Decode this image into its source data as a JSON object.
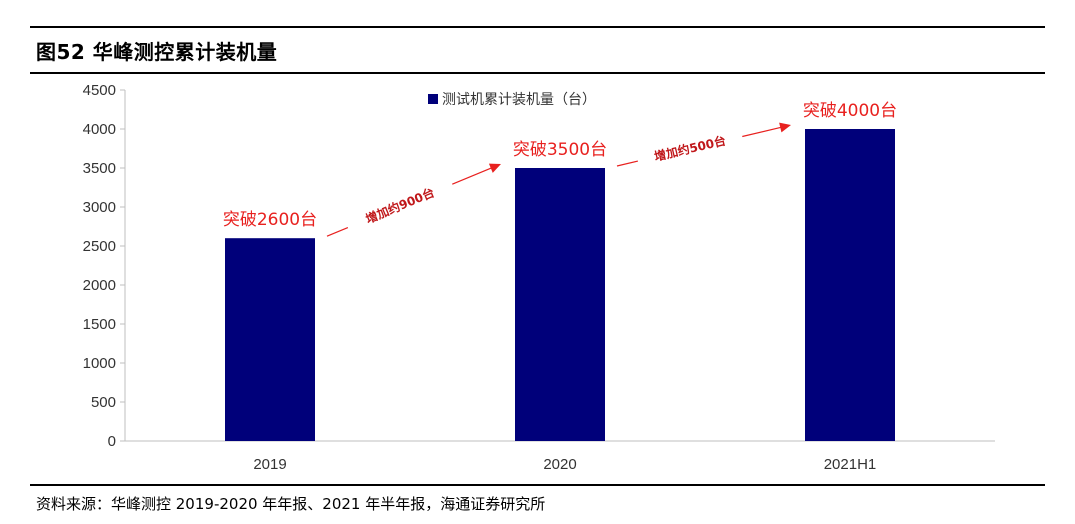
{
  "header": {
    "title": "图52 华峰测控累计装机量"
  },
  "footer": {
    "source": "资料来源：华峰测控 2019-2020 年年报、2021 年半年报，海通证券研究所"
  },
  "colors": {
    "bar": "#00007a",
    "highlight": "#e8211f",
    "axis": "#bfbfbf"
  },
  "chart_data": {
    "type": "bar",
    "categories": [
      "2019",
      "2020",
      "2021H1"
    ],
    "series": [
      {
        "name": "测试机累计装机量（台）",
        "values": [
          2600,
          3500,
          4000
        ]
      }
    ],
    "ylim": [
      0,
      4500
    ],
    "yticks": [
      0,
      500,
      1000,
      1500,
      2000,
      2500,
      3000,
      3500,
      4000,
      4500
    ],
    "grid": false,
    "legend_position": "top",
    "callouts": [
      "突破2600台",
      "突破3500台",
      "突破4000台"
    ],
    "increases": [
      "增加约900台",
      "增加约500台"
    ]
  }
}
